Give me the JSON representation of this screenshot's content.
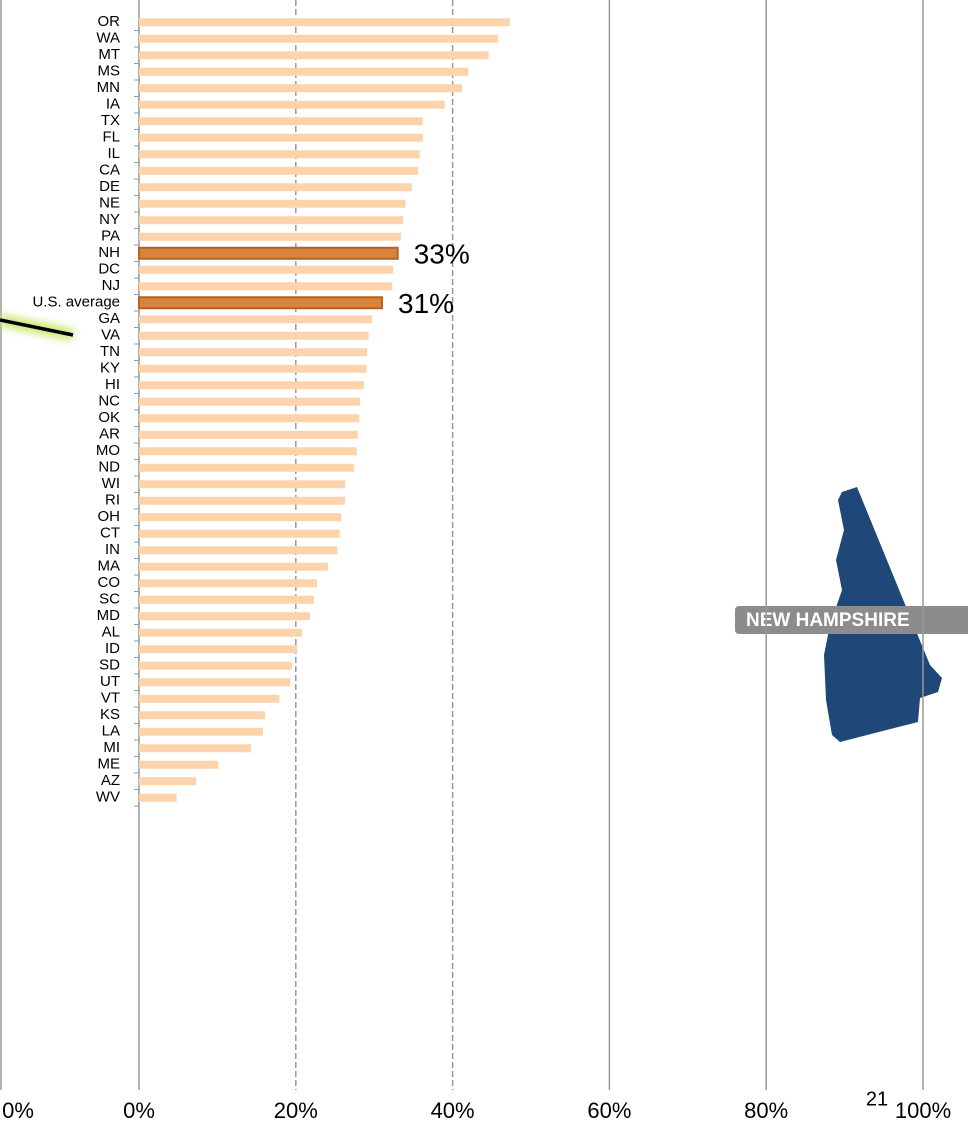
{
  "chart_data": {
    "type": "barh",
    "categories": [
      "OR",
      "WA",
      "MT",
      "MS",
      "MN",
      "IA",
      "TX",
      "FL",
      "IL",
      "CA",
      "DE",
      "NE",
      "NY",
      "PA",
      "NH",
      "DC",
      "NJ",
      "U.S. average",
      "GA",
      "VA",
      "TN",
      "KY",
      "HI",
      "NC",
      "OK",
      "AR",
      "MO",
      "ND",
      "WI",
      "RI",
      "OH",
      "CT",
      "IN",
      "MA",
      "CO",
      "SC",
      "MD",
      "AL",
      "ID",
      "SD",
      "UT",
      "VT",
      "KS",
      "LA",
      "MI",
      "ME",
      "AZ",
      "WV"
    ],
    "values": [
      47.3,
      45.8,
      44.6,
      42,
      41.2,
      39,
      36.2,
      36.2,
      35.8,
      35.6,
      34.8,
      34,
      33.7,
      33.4,
      33,
      32.4,
      32.3,
      31,
      29.7,
      29.3,
      29.1,
      29,
      28.7,
      28.2,
      28.1,
      27.9,
      27.8,
      27.4,
      26.3,
      26.3,
      25.8,
      25.6,
      25.3,
      24.1,
      22.7,
      22.3,
      21.8,
      20.8,
      20.2,
      19.5,
      19.3,
      17.9,
      16.1,
      15.8,
      14.3,
      10.1,
      7.3,
      4.8
    ],
    "value_labels": [
      null,
      null,
      null,
      null,
      null,
      null,
      null,
      null,
      null,
      null,
      null,
      null,
      null,
      null,
      "33%",
      null,
      null,
      "31%",
      null,
      null,
      null,
      null,
      null,
      null,
      null,
      null,
      null,
      null,
      null,
      null,
      null,
      null,
      null,
      null,
      null,
      null,
      null,
      null,
      null,
      null,
      null,
      null,
      null,
      null,
      null,
      null,
      null,
      null
    ],
    "color": "#fdd3ac",
    "highlight_color": "#d9843d",
    "xlim": [
      0,
      100
    ],
    "xticks": [
      {
        "value": 0,
        "label": "0%"
      },
      {
        "value": 20,
        "label": "20%"
      },
      {
        "value": 40,
        "label": "40%"
      },
      {
        "value": 60,
        "label": "60%"
      },
      {
        "value": 80,
        "label": "80%"
      },
      {
        "value": 100,
        "label": "100%"
      }
    ],
    "grid": true,
    "left_tick_label": "0%",
    "map_label": "NEW HAMPSHIRE",
    "page_number": "21"
  }
}
